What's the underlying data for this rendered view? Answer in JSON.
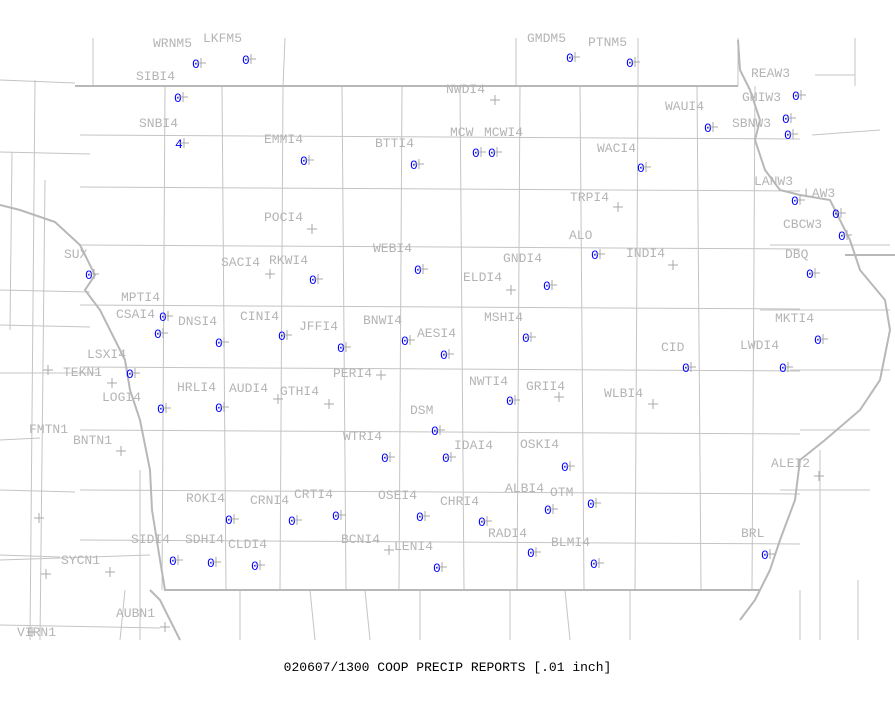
{
  "title": "020607/1300 COOP PRECIP REPORTS [.01 inch]",
  "colors": {
    "station_label": "#b4b4b4",
    "value": "#0000ff",
    "boundaries": "#bdbdbd"
  },
  "stations": [
    {
      "id": "WRNM5",
      "value": "0"
    },
    {
      "id": "LKFM5",
      "value": "0"
    },
    {
      "id": "SIBI4",
      "value": "0"
    },
    {
      "id": "SNBI4",
      "value": "4"
    },
    {
      "id": "EMMI4",
      "value": "0"
    },
    {
      "id": "BTTI4",
      "value": "0"
    },
    {
      "id": "NWDI4",
      "value": null
    },
    {
      "id": "MCW",
      "value": "0"
    },
    {
      "id": "MCWI4",
      "value": "0"
    },
    {
      "id": "GMDM5",
      "value": "0"
    },
    {
      "id": "PTNM5",
      "value": "0"
    },
    {
      "id": "WAUI4",
      "value": "0"
    },
    {
      "id": "WACI4",
      "value": "0"
    },
    {
      "id": "REAW3",
      "value": "0"
    },
    {
      "id": "GMIW3",
      "value": "0"
    },
    {
      "id": "SBNW3",
      "value": "0"
    },
    {
      "id": "TRPI4",
      "value": null
    },
    {
      "id": "LANW3",
      "value": "0"
    },
    {
      "id": "LAW3",
      "value": "0"
    },
    {
      "id": "CBCW3",
      "value": "0"
    },
    {
      "id": "ALO",
      "value": "0"
    },
    {
      "id": "INDI4",
      "value": null
    },
    {
      "id": "POCI4",
      "value": null
    },
    {
      "id": "SACI4",
      "value": null
    },
    {
      "id": "RKWI4",
      "value": "0"
    },
    {
      "id": "WEBI4",
      "value": "0"
    },
    {
      "id": "ELDI4",
      "value": null
    },
    {
      "id": "GNDI4",
      "value": "0"
    },
    {
      "id": "DBQ",
      "value": "0"
    },
    {
      "id": "SUX",
      "value": "0"
    },
    {
      "id": "MPTI4",
      "value": "0"
    },
    {
      "id": "CSAI4",
      "value": "0"
    },
    {
      "id": "DNSI4",
      "value": "0"
    },
    {
      "id": "CINI4",
      "value": "0"
    },
    {
      "id": "JFFI4",
      "value": "0"
    },
    {
      "id": "BNWI4",
      "value": "0"
    },
    {
      "id": "AESI4",
      "value": "0"
    },
    {
      "id": "MSHI4",
      "value": "0"
    },
    {
      "id": "MKTI4",
      "value": "0"
    },
    {
      "id": "CID",
      "value": "0"
    },
    {
      "id": "LWDI4",
      "value": "0"
    },
    {
      "id": "PERI4",
      "value": null
    },
    {
      "id": "LSXI4",
      "value": "0"
    },
    {
      "id": "TEKN1",
      "value": null
    },
    {
      "id": "LOGI4",
      "value": "0"
    },
    {
      "id": "HRLI4",
      "value": "0"
    },
    {
      "id": "AUDI4",
      "value": null
    },
    {
      "id": "GTHI4",
      "value": null
    },
    {
      "id": "NWTI4",
      "value": "0"
    },
    {
      "id": "GRII4",
      "value": null
    },
    {
      "id": "WLBI4",
      "value": null
    },
    {
      "id": "DSM",
      "value": "0"
    },
    {
      "id": "FMTN1",
      "value": null
    },
    {
      "id": "BNTN1",
      "value": null
    },
    {
      "id": "WTRI4",
      "value": "0"
    },
    {
      "id": "IDAI4",
      "value": "0"
    },
    {
      "id": "OSKI4",
      "value": "0"
    },
    {
      "id": "ALEI2",
      "value": null
    },
    {
      "id": "ROKI4",
      "value": "0"
    },
    {
      "id": "CRNI4",
      "value": "0"
    },
    {
      "id": "CRTI4",
      "value": "0"
    },
    {
      "id": "OSEI4",
      "value": "0"
    },
    {
      "id": "CHRI4",
      "value": "0"
    },
    {
      "id": "ALBI4",
      "value": "0"
    },
    {
      "id": "OTM",
      "value": "0"
    },
    {
      "id": "BCNI4",
      "value": null
    },
    {
      "id": "SIDI4",
      "value": "0"
    },
    {
      "id": "SDHI4",
      "value": "0"
    },
    {
      "id": "CLDI4",
      "value": "0"
    },
    {
      "id": "LENI4",
      "value": "0"
    },
    {
      "id": "RADI4",
      "value": "0"
    },
    {
      "id": "BLMI4",
      "value": "0"
    },
    {
      "id": "BRL",
      "value": "0"
    },
    {
      "id": "SYCN1",
      "value": null
    },
    {
      "id": "AUBN1",
      "value": null
    },
    {
      "id": "VIRN1",
      "value": null
    }
  ]
}
